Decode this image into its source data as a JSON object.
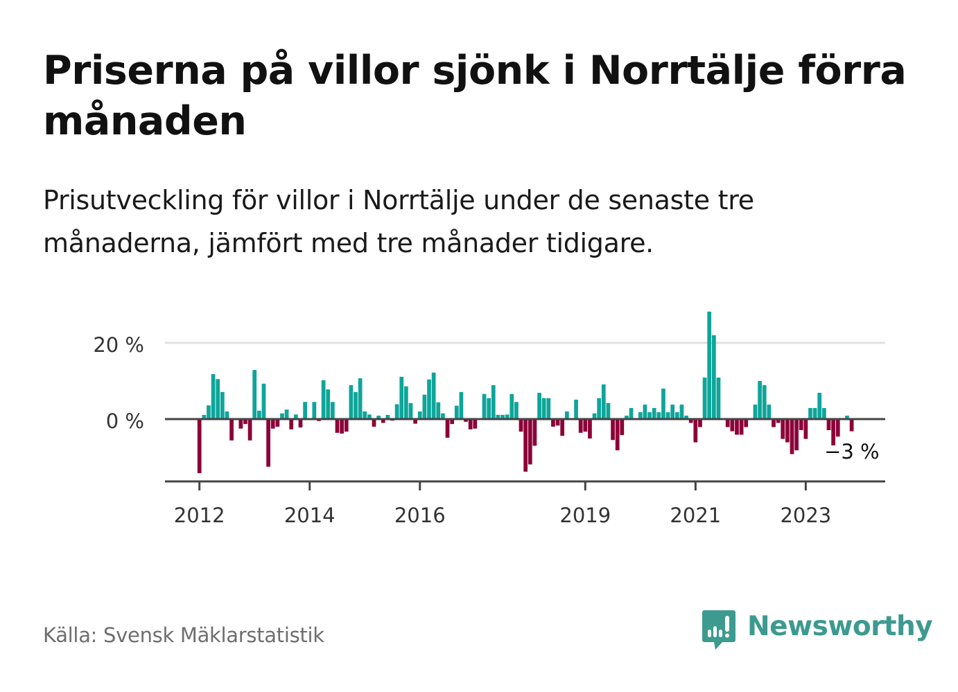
{
  "header": {
    "title": "Priserna på villor sjönk i Norrtälje förra månaden",
    "subtitle": "Prisutveckling för villor i Norrtälje under de senaste tre månaderna, jämfört med tre månader tidigare."
  },
  "footer": {
    "source": "Källa: Svensk Mäklarstatistik",
    "brand": "Newsworthy",
    "brand_icon": "newsworthy-chart-bubble-icon"
  },
  "colors": {
    "positive": "#0ea59a",
    "negative": "#8c0038",
    "gridline": "#e0e0e0",
    "axis": "#444444",
    "brand": "#3c9a8f"
  },
  "chart_data": {
    "type": "bar",
    "title": "Priserna på villor sjönk i Norrtälje förra månaden",
    "subtitle": "Prisutveckling för villor i Norrtälje under de senaste tre månaderna, jämfört med tre månader tidigare.",
    "xlabel": "",
    "ylabel": "",
    "start_month": "2012-01",
    "end_month": "2023-11",
    "frequency": "monthly",
    "unit": "%",
    "ylim": [
      -16.4,
      30
    ],
    "xlim_months_from_start": [
      -7.5,
      149.3
    ],
    "yticks": [
      {
        "value": 0,
        "label": "0 %"
      },
      {
        "value": 20,
        "label": "20 %"
      }
    ],
    "xticks": [
      {
        "index": 0,
        "label": "2012"
      },
      {
        "index": 24,
        "label": "2014"
      },
      {
        "index": 48,
        "label": "2016"
      },
      {
        "index": 84,
        "label": "2019"
      },
      {
        "index": 108,
        "label": "2021"
      },
      {
        "index": 132,
        "label": "2023"
      }
    ],
    "grid": true,
    "legend": "none",
    "last_value_label": "−3 %",
    "values": [
      -14.2,
      1.1,
      3.6,
      11.8,
      10.5,
      7.1,
      2.0,
      -5.6,
      0,
      -2.5,
      -1.3,
      -5.6,
      12.9,
      2.2,
      9.3,
      -12.5,
      -2.5,
      -2.0,
      1.5,
      2.5,
      -2.7,
      1.2,
      -2.2,
      4.5,
      0,
      4.5,
      -0.5,
      10.2,
      7.8,
      4.5,
      -3.6,
      -3.8,
      -3.3,
      8.9,
      7.1,
      10.7,
      2.0,
      1.2,
      -2.0,
      0.9,
      -1.0,
      1.1,
      -0.4,
      3.9,
      11.1,
      8.6,
      4.2,
      -1.2,
      2.0,
      6.4,
      10.4,
      12.2,
      4.4,
      1.5,
      -4.9,
      -1.3,
      3.5,
      7.1,
      -0.7,
      -2.7,
      -2.5,
      0.2,
      6.6,
      5.5,
      8.9,
      1.1,
      1.1,
      1.2,
      6.6,
      4.5,
      -3.3,
      -13.8,
      -11.9,
      -7.0,
      6.9,
      5.5,
      5.5,
      -2.0,
      -1.7,
      -4.4,
      2.0,
      0,
      5.1,
      -3.6,
      -3.3,
      -5.1,
      1.5,
      5.5,
      9.1,
      4.2,
      -5.5,
      -8.2,
      -4.2,
      0.9,
      2.9,
      0,
      1.8,
      3.8,
      1.8,
      2.9,
      1.8,
      8.0,
      1.8,
      3.8,
      1.8,
      3.8,
      0.9,
      -1.0,
      -6.1,
      -2.1,
      10.9,
      28.2,
      22.0,
      10.9,
      0,
      -2.1,
      -3.2,
      -4.1,
      -4.1,
      -2.1,
      0,
      3.8,
      10.0,
      8.9,
      3.8,
      -2.1,
      -1.0,
      -5.2,
      -6.1,
      -9.2,
      -8.2,
      -2.9,
      -5.2,
      2.9,
      2.9,
      6.9,
      2.9,
      -2.9,
      -6.9,
      -4.6,
      0,
      0.9,
      -3.2
    ]
  }
}
